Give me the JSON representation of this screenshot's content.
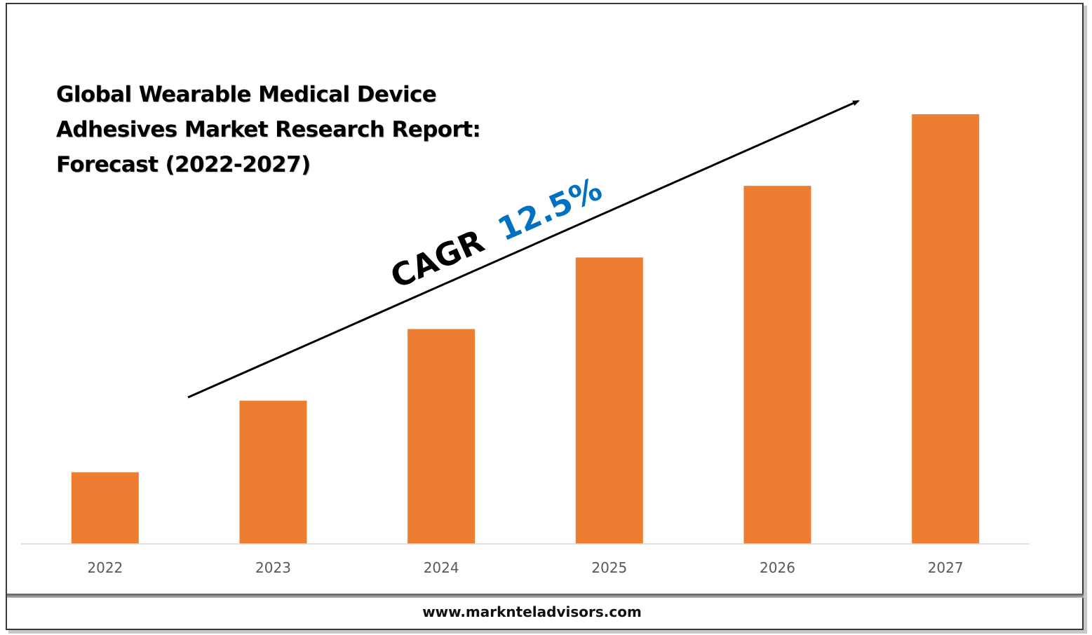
{
  "title": {
    "line1": "Global Wearable Medical Device",
    "line2": "Adhesives Market Research Report:",
    "line3": "Forecast (2022-2027)"
  },
  "annotation": {
    "cagr_label": "CAGR",
    "cagr_value": "12.5%",
    "cagr_value_color": "#0070C0"
  },
  "footer": {
    "url": "www.marknteladvisors.com"
  },
  "colors": {
    "bar": "#ED7D31",
    "axis": "#D9D9D9",
    "tick_text": "#595959"
  },
  "chart_data": {
    "type": "bar",
    "categories": [
      "2022",
      "2023",
      "2024",
      "2025",
      "2026",
      "2027"
    ],
    "values": [
      1,
      2,
      3,
      4,
      5,
      6
    ],
    "ylim": [
      0,
      6.2
    ],
    "xlabel": "",
    "ylabel": "",
    "grid": false,
    "legend": "none"
  }
}
